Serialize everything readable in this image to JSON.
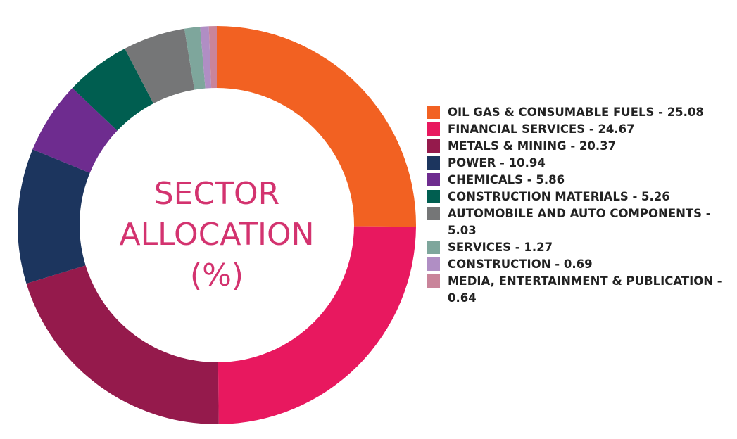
{
  "chart_data": {
    "type": "donut",
    "title": "SECTOR ALLOCATION (%)",
    "categories": [
      "OIL GAS & CONSUMABLE FUELS - 25.08",
      "FINANCIAL SERVICES - 24.67",
      "METALS & MINING - 20.37",
      "POWER - 10.94",
      "CHEMICALS - 5.86",
      "CONSTRUCTION MATERIALS - 5.26",
      "AUTOMOBILE AND AUTO COMPONENTS - 5.03",
      "SERVICES - 1.27",
      "CONSTRUCTION - 0.69",
      "MEDIA, ENTERTAINMENT & PUBLICATION - 0.64"
    ],
    "values": [
      25.08,
      24.67,
      20.37,
      10.94,
      5.86,
      5.26,
      5.03,
      1.27,
      0.69,
      0.64
    ],
    "colors": [
      "#f26122",
      "#e8185f",
      "#951a4c",
      "#1c355e",
      "#6e2c8f",
      "#005e50",
      "#757677",
      "#7ea69c",
      "#b08ec4",
      "#c9849a"
    ]
  }
}
